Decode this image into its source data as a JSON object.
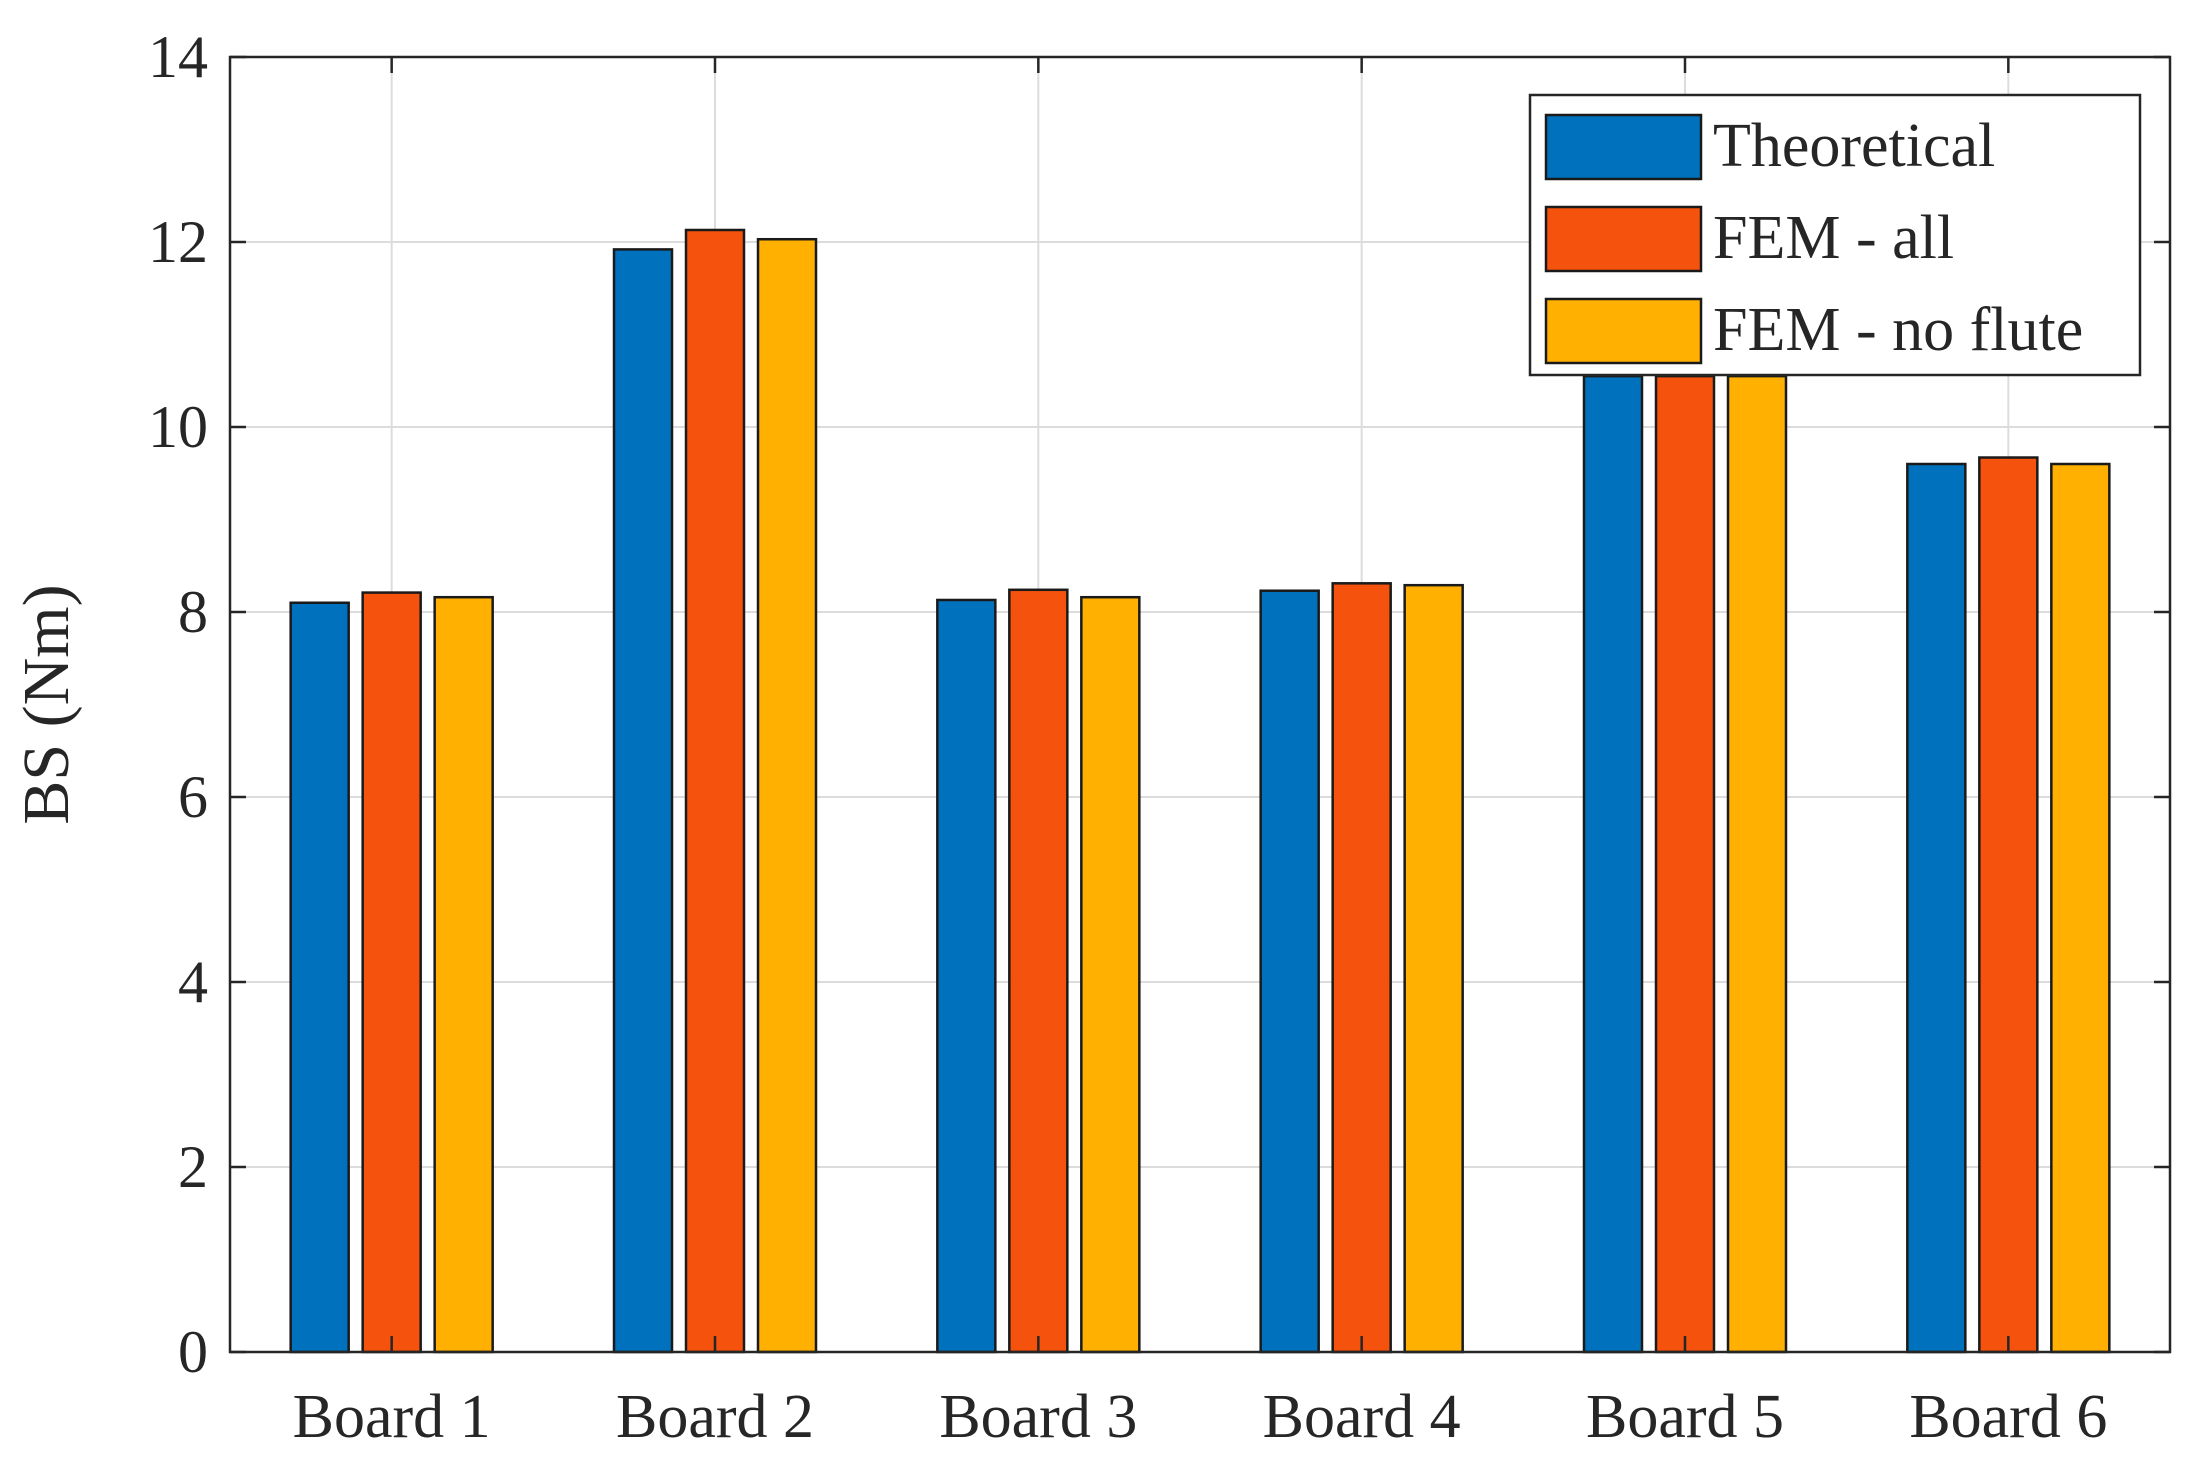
{
  "chart_data": {
    "type": "bar",
    "title": "",
    "xlabel": "",
    "ylabel": "BS (Nm)",
    "categories": [
      "Board 1",
      "Board 2",
      "Board 3",
      "Board 4",
      "Board 5",
      "Board 6"
    ],
    "series": [
      {
        "name": "Theoretical",
        "color": "#0072BD",
        "values": [
          8.1,
          11.92,
          8.13,
          8.23,
          10.55,
          9.6
        ]
      },
      {
        "name": "FEM - all",
        "color": "#F4520D",
        "values": [
          8.21,
          12.13,
          8.24,
          8.31,
          10.55,
          9.67
        ]
      },
      {
        "name": "FEM - no flute",
        "color": "#FFB000",
        "values": [
          8.16,
          12.03,
          8.16,
          8.29,
          10.55,
          9.6
        ]
      }
    ],
    "ylim": [
      0,
      14
    ],
    "yticks": [
      0,
      2,
      4,
      6,
      8,
      10,
      12,
      14
    ],
    "grid": true,
    "legend_position": "top-right"
  }
}
